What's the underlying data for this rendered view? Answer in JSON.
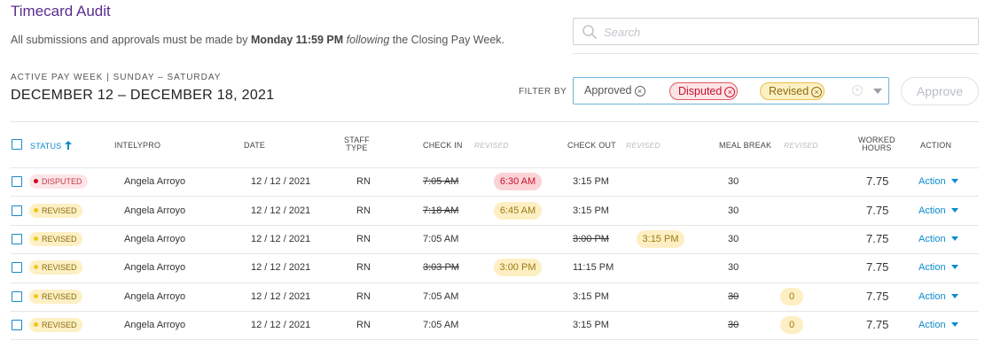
{
  "header": {
    "title": "Timecard Audit",
    "subtitle_pre": "All submissions and approvals must be made by ",
    "subtitle_bold": "Monday 11:59 PM",
    "subtitle_space": " ",
    "subtitle_italic": "following",
    "subtitle_post": " the Closing Pay Week."
  },
  "search": {
    "placeholder": "Search",
    "value": ""
  },
  "week": {
    "label": "ACTIVE PAY WEEK | SUNDAY – SATURDAY",
    "range": "DECEMBER 12 – DECEMBER 18, 2021"
  },
  "filter": {
    "label": "FILTER BY",
    "chips": [
      "Approved",
      "Disputed",
      "Revised"
    ],
    "clear_glyph": "×",
    "chip_remove_glyph": "×"
  },
  "approve_label": "Approve",
  "colors": {
    "accent": "#0b8ccc",
    "title": "#5b2d8e",
    "disputed": "#d0021b",
    "revised": "#f5c518"
  },
  "table": {
    "headers": {
      "status": "STATUS",
      "intelypro": "INTELYPRO",
      "date": "DATE",
      "staff_type_1": "STAFF",
      "staff_type_2": "TYPE",
      "check_in": "CHECK IN",
      "check_in_revised": "REVISED",
      "check_out": "CHECK OUT",
      "check_out_revised": "REVISED",
      "meal_break": "MEAL BREAK",
      "meal_break_revised": "REVISED",
      "worked_1": "WORKED",
      "worked_2": "HOURS",
      "action": "ACTION"
    },
    "rows": [
      {
        "status": "DISPUTED",
        "name": "Angela Arroyo",
        "date": "12 / 12 / 2021",
        "staff_type": "RN",
        "check_in": "7:05 AM",
        "check_in_revised": "6:30 AM",
        "check_out": "3:15 PM",
        "check_out_revised": "",
        "meal_break": "30",
        "meal_break_revised": "",
        "worked_hours": "7.75",
        "action": "Action"
      },
      {
        "status": "REVISED",
        "name": "Angela Arroyo",
        "date": "12 / 12 / 2021",
        "staff_type": "RN",
        "check_in": "7:18 AM",
        "check_in_revised": "6:45 AM",
        "check_out": "3:15 PM",
        "check_out_revised": "",
        "meal_break": "30",
        "meal_break_revised": "",
        "worked_hours": "7.75",
        "action": "Action"
      },
      {
        "status": "REVISED",
        "name": "Angela Arroyo",
        "date": "12 / 12 / 2021",
        "staff_type": "RN",
        "check_in": "7:05 AM",
        "check_in_revised": "",
        "check_out": "3:00 PM",
        "check_out_revised": "3:15 PM",
        "meal_break": "30",
        "meal_break_revised": "",
        "worked_hours": "7.75",
        "action": "Action"
      },
      {
        "status": "REVISED",
        "name": "Angela Arroyo",
        "date": "12 / 12 / 2021",
        "staff_type": "RN",
        "check_in": "3:03 PM",
        "check_in_revised": "3:00 PM",
        "check_out": "11:15 PM",
        "check_out_revised": "",
        "meal_break": "30",
        "meal_break_revised": "",
        "worked_hours": "7.75",
        "action": "Action"
      },
      {
        "status": "REVISED",
        "name": "Angela Arroyo",
        "date": "12 / 12 / 2021",
        "staff_type": "RN",
        "check_in": "7:05 AM",
        "check_in_revised": "",
        "check_out": "3:15 PM",
        "check_out_revised": "",
        "meal_break": "30",
        "meal_break_revised": "0",
        "worked_hours": "7.75",
        "action": "Action"
      },
      {
        "status": "REVISED",
        "name": "Angela Arroyo",
        "date": "12 / 12 / 2021",
        "staff_type": "RN",
        "check_in": "7:05 AM",
        "check_in_revised": "",
        "check_out": "3:15 PM",
        "check_out_revised": "",
        "meal_break": "30",
        "meal_break_revised": "0",
        "worked_hours": "7.75",
        "action": "Action"
      }
    ]
  }
}
